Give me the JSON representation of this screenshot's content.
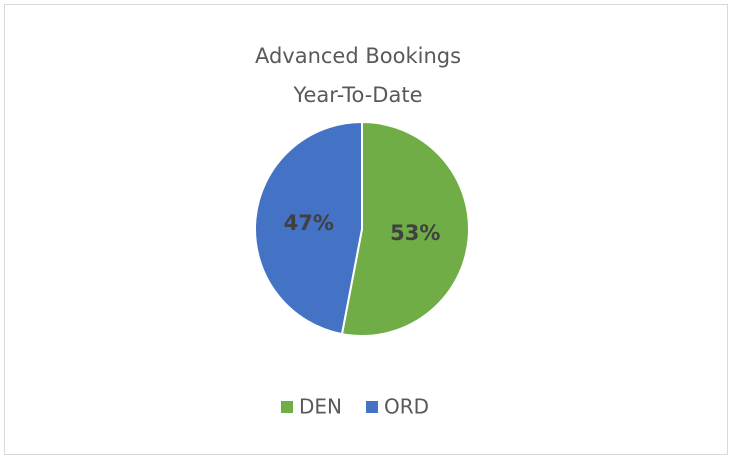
{
  "chart_data": {
    "type": "pie",
    "title": [
      "Advanced Bookings",
      "Year-To-Date"
    ],
    "categories": [
      "DEN",
      "ORD"
    ],
    "values": [
      53,
      47
    ],
    "value_labels": [
      "53%",
      "47%"
    ],
    "colors": [
      "#70ad47",
      "#4472c4"
    ],
    "legend": "bottom"
  }
}
